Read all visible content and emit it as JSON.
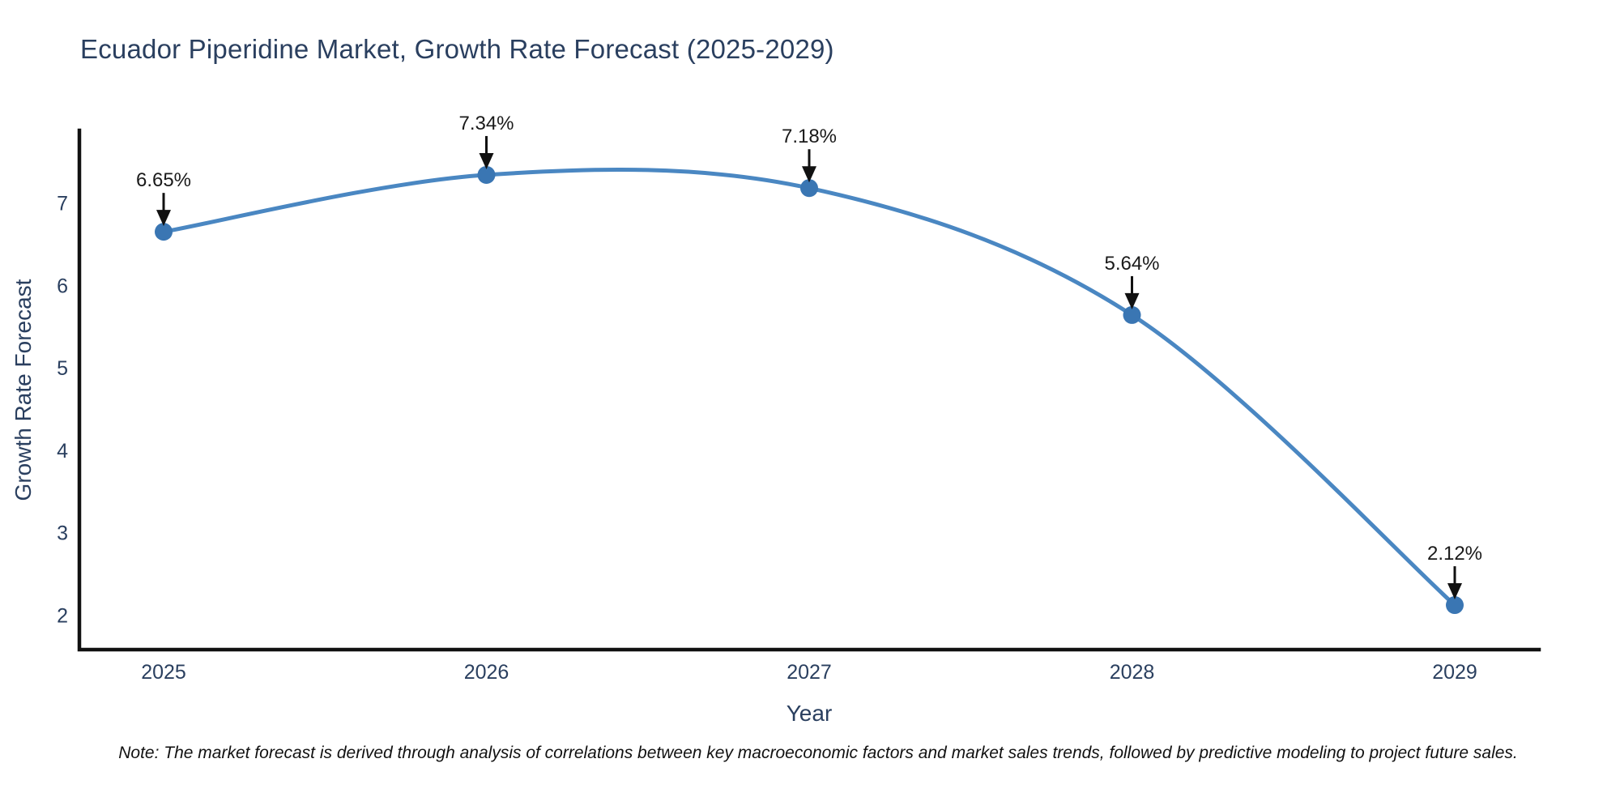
{
  "title": "Ecuador Piperidine Market, Growth Rate Forecast (2025-2029)",
  "note": "Note: The market forecast is derived through analysis of correlations between key macroeconomic factors and market sales trends, followed by predictive modeling to project future sales.",
  "chart_data": {
    "type": "line",
    "title": "Ecuador Piperidine Market, Growth Rate Forecast (2025-2029)",
    "xlabel": "Year",
    "ylabel": "Growth Rate Forecast",
    "x": [
      2025,
      2026,
      2027,
      2028,
      2029
    ],
    "values": [
      6.65,
      7.34,
      7.18,
      5.64,
      2.12
    ],
    "point_labels": [
      "6.65%",
      "7.34%",
      "7.18%",
      "5.64%",
      "2.12%"
    ],
    "xtick_labels": [
      "2025",
      "2026",
      "2027",
      "2028",
      "2029"
    ],
    "yticks": [
      2,
      3,
      4,
      5,
      6,
      7
    ],
    "ylim": [
      1.58,
      7.88
    ],
    "grid": false,
    "legend": "none",
    "line_shape": "spline",
    "annotation_style": "label-above-with-down-arrow",
    "colors": {
      "line": "#4a87c2",
      "marker": "#3a76b3",
      "axis": "#111111",
      "axis_text": "#2a3f5f",
      "annotation_text": "#1a1a1a",
      "arrow": "#111111",
      "title": "#2a3f5f",
      "background": "#ffffff"
    }
  }
}
